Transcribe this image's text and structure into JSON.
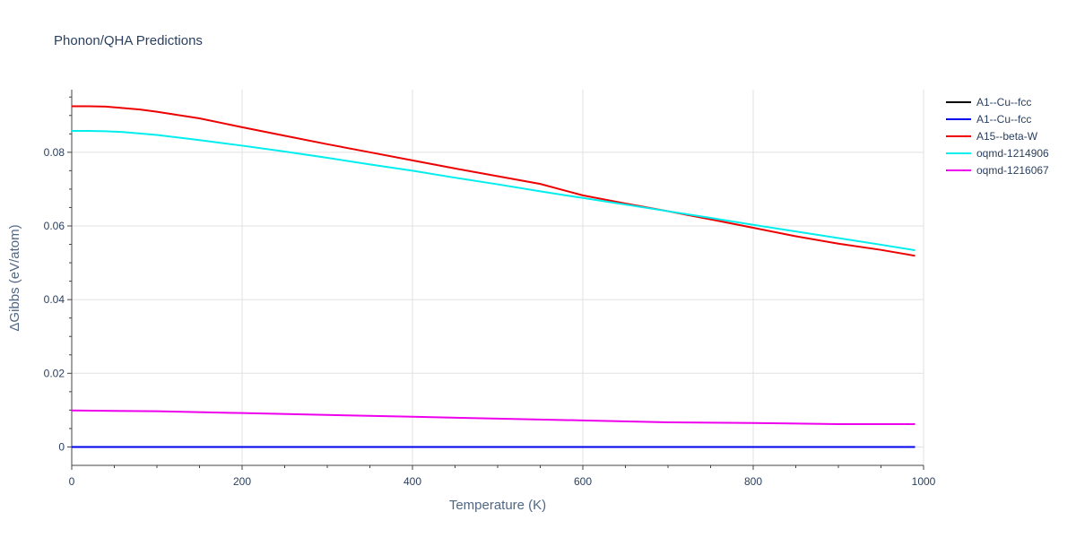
{
  "chart_data": {
    "type": "line",
    "title": "Phonon/QHA Predictions",
    "xlabel": "Temperature (K)",
    "ylabel": "ΔGibbs (eV/atom)",
    "xlim": [
      0,
      1000
    ],
    "ylim": [
      -0.005,
      0.097
    ],
    "xticks": [
      0,
      200,
      400,
      600,
      800,
      1000
    ],
    "xtick_labels": [
      "0",
      "200",
      "400",
      "600",
      "800",
      "1000"
    ],
    "yticks": [
      0,
      0.02,
      0.04,
      0.06,
      0.08
    ],
    "ytick_labels": [
      "0",
      "0.02",
      "0.04",
      "0.06",
      "0.08"
    ],
    "grid": true,
    "legend_position": "top-right",
    "series": [
      {
        "name": "A1--Cu--fcc",
        "color": "#000000",
        "x": [
          0,
          100,
          200,
          300,
          400,
          500,
          600,
          700,
          800,
          900,
          990
        ],
        "y": [
          0,
          0,
          0,
          0,
          0,
          0,
          0,
          0,
          0,
          0,
          0
        ]
      },
      {
        "name": "A1--Cu--fcc",
        "color": "#0000ee",
        "x": [
          0,
          100,
          200,
          300,
          400,
          500,
          600,
          700,
          800,
          900,
          990
        ],
        "y": [
          0,
          0,
          0,
          0,
          0,
          0,
          0,
          0,
          0,
          0,
          0
        ]
      },
      {
        "name": "A15--beta-W",
        "color": "#ee0000",
        "x": [
          0,
          20,
          40,
          60,
          80,
          100,
          150,
          200,
          250,
          300,
          350,
          400,
          450,
          500,
          550,
          600,
          650,
          700,
          750,
          800,
          850,
          900,
          950,
          990
        ],
        "y": [
          0.0925,
          0.0925,
          0.0924,
          0.092,
          0.0916,
          0.091,
          0.0892,
          0.0868,
          0.0845,
          0.0822,
          0.08,
          0.0778,
          0.0756,
          0.0735,
          0.0714,
          0.0683,
          0.0661,
          0.064,
          0.0618,
          0.0595,
          0.0572,
          0.0552,
          0.0535,
          0.0519
        ]
      },
      {
        "name": "oqmd-1214906",
        "color": "#00eeee",
        "x": [
          0,
          20,
          40,
          60,
          80,
          100,
          150,
          200,
          250,
          300,
          350,
          400,
          450,
          500,
          550,
          600,
          650,
          700,
          750,
          800,
          850,
          900,
          950,
          990
        ],
        "y": [
          0.0858,
          0.0858,
          0.0857,
          0.0855,
          0.0851,
          0.0847,
          0.0833,
          0.0818,
          0.0802,
          0.0785,
          0.0767,
          0.075,
          0.0731,
          0.0713,
          0.0694,
          0.0676,
          0.0658,
          0.064,
          0.0622,
          0.0603,
          0.0585,
          0.0567,
          0.0549,
          0.0534
        ]
      },
      {
        "name": "oqmd-1216067",
        "color": "#ee00ee",
        "x": [
          0,
          100,
          200,
          300,
          400,
          500,
          600,
          700,
          800,
          900,
          990
        ],
        "y": [
          0.0099,
          0.0097,
          0.0092,
          0.0087,
          0.0082,
          0.0077,
          0.0072,
          0.0067,
          0.0065,
          0.0062,
          0.0062
        ]
      }
    ]
  }
}
